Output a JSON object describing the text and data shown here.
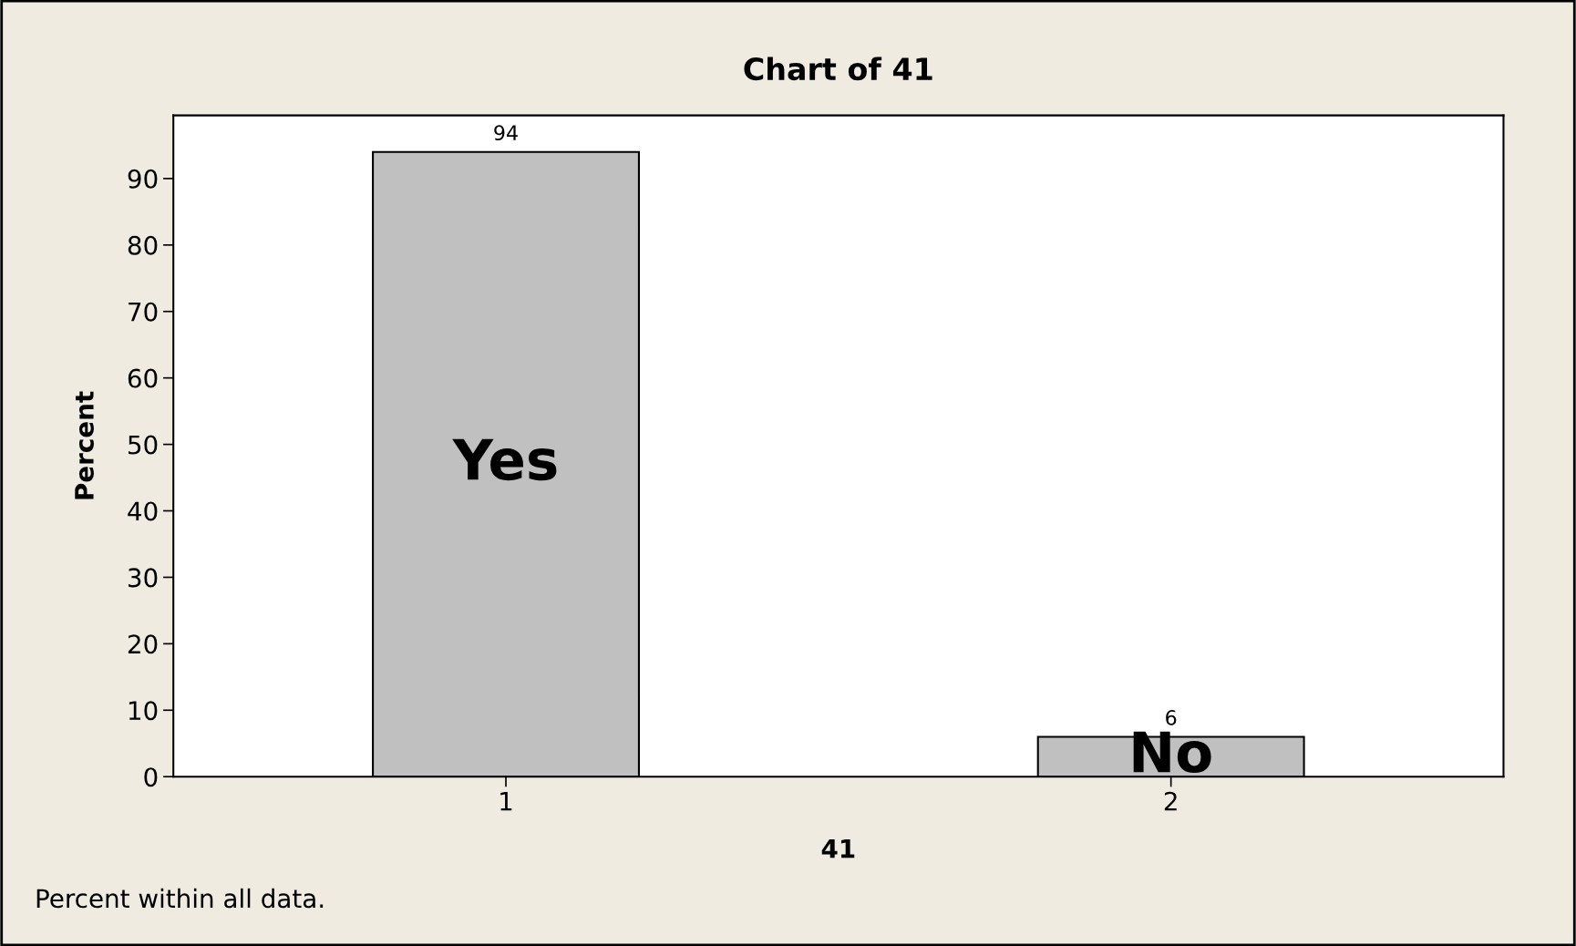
{
  "chart_data": {
    "type": "bar",
    "title": "Chart of 41",
    "xlabel": "41",
    "ylabel": "Percent",
    "categories": [
      "1",
      "2"
    ],
    "values": [
      94,
      6
    ],
    "color": "#c0c0c0",
    "ylim": [
      0,
      99.5
    ],
    "yticks": [
      0,
      10,
      20,
      30,
      40,
      50,
      60,
      70,
      80,
      90
    ],
    "grid": false,
    "data_labels": true,
    "annotations": [
      "Yes",
      "No",
      "Percent within all data."
    ]
  }
}
